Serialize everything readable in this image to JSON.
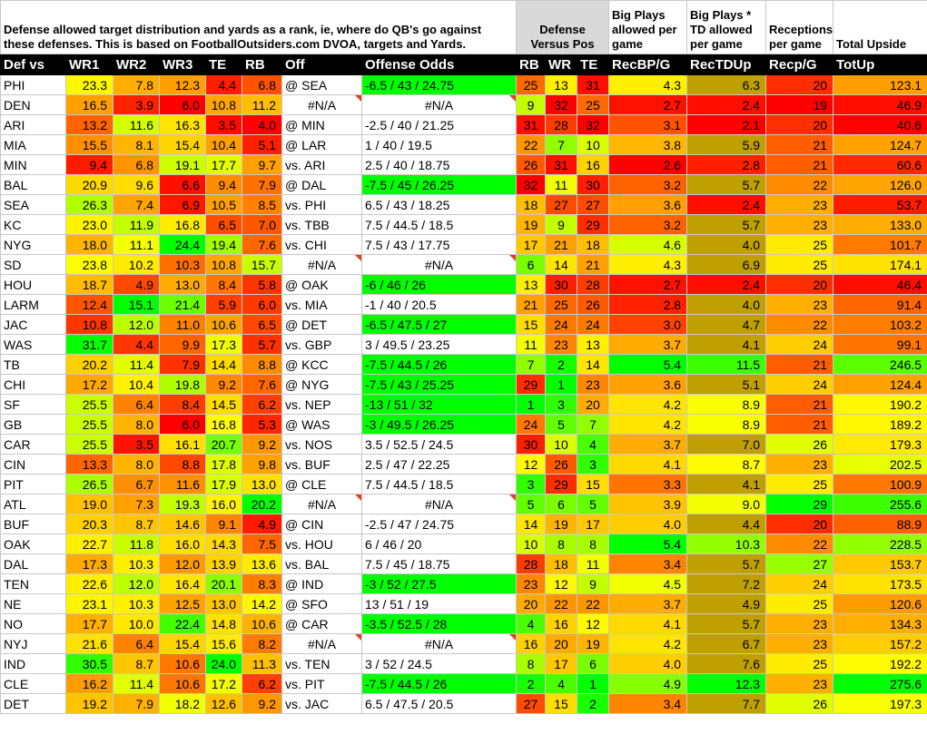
{
  "header": {
    "description": "Defense allowed target distribution and yards as a rank, ie, where do QB's go against these defenses. This is based on FootballOutsiders.com DVOA, targets and Yards.",
    "defense_vs_pos": "Defense Versus Pos",
    "big_plays": "Big Plays allowed per game",
    "big_plays_td": "Big Plays * TD allowed per game",
    "receptions": "Receptions per game",
    "total_upside": "Total Upside"
  },
  "columns": [
    "Def vs",
    "WR1",
    "WR2",
    "WR3",
    "TE",
    "RB",
    "Off",
    "Offense Odds",
    "RB",
    "WR",
    "TE",
    "RecBP/G",
    "RecTDUp",
    "Recp/G",
    "TotUp"
  ],
  "colors": {
    "green": "#00ff00",
    "yellow": "#ffff00",
    "orange": "#ff9900",
    "red": "#ff0000"
  },
  "rows": [
    {
      "team": "PHI",
      "wr1": "23.3",
      "wr2": "7.8",
      "wr3": "12.3",
      "te": "4.4",
      "rb": "6.8",
      "off": "@ SEA",
      "odds": "-6.5 / 43 / 24.75",
      "drb": "25",
      "dwr": "13",
      "dte": "31",
      "bp": "4.3",
      "td": "6.3",
      "rec": "20",
      "tot": "123.1"
    },
    {
      "team": "DEN",
      "wr1": "16.5",
      "wr2": "3.9",
      "wr3": "6.0",
      "te": "10.8",
      "rb": "11.2",
      "off": "#N/A",
      "odds": "#N/A",
      "drb": "9",
      "dwr": "32",
      "dte": "25",
      "bp": "2.7",
      "td": "2.4",
      "rec": "19",
      "tot": "46.9"
    },
    {
      "team": "ARI",
      "wr1": "13.2",
      "wr2": "11.6",
      "wr3": "16.3",
      "te": "3.5",
      "rb": "4.0",
      "off": "@ MIN",
      "odds": "-2.5 / 40 / 21.25",
      "drb": "31",
      "dwr": "28",
      "dte": "32",
      "bp": "3.1",
      "td": "2.1",
      "rec": "20",
      "tot": "40.6"
    },
    {
      "team": "MIA",
      "wr1": "15.5",
      "wr2": "8.1",
      "wr3": "15.4",
      "te": "10.4",
      "rb": "5.1",
      "off": "@ LAR",
      "odds": "1 / 40 / 19.5",
      "drb": "22",
      "dwr": "7",
      "dte": "10",
      "bp": "3.8",
      "td": "5.9",
      "rec": "21",
      "tot": "124.7"
    },
    {
      "team": "MIN",
      "wr1": "9.4",
      "wr2": "6.8",
      "wr3": "19.1",
      "te": "17.7",
      "rb": "9.7",
      "off": "vs. ARI",
      "odds": "2.5 / 40 / 18.75",
      "drb": "26",
      "dwr": "31",
      "dte": "16",
      "bp": "2.6",
      "td": "2.8",
      "rec": "21",
      "tot": "60.6"
    },
    {
      "team": "BAL",
      "wr1": "20.9",
      "wr2": "9.6",
      "wr3": "6.6",
      "te": "9.4",
      "rb": "7.9",
      "off": "@ DAL",
      "odds": "-7.5 / 45 / 26.25",
      "drb": "32",
      "dwr": "11",
      "dte": "30",
      "bp": "3.2",
      "td": "5.7",
      "rec": "22",
      "tot": "126.0"
    },
    {
      "team": "SEA",
      "wr1": "26.3",
      "wr2": "7.4",
      "wr3": "6.9",
      "te": "10.5",
      "rb": "8.5",
      "off": "vs. PHI",
      "odds": "6.5 / 43 / 18.25",
      "drb": "18",
      "dwr": "27",
      "dte": "27",
      "bp": "3.6",
      "td": "2.4",
      "rec": "23",
      "tot": "53.7"
    },
    {
      "team": "KC",
      "wr1": "23.0",
      "wr2": "11.9",
      "wr3": "16.8",
      "te": "6.5",
      "rb": "7.0",
      "off": "vs. TBB",
      "odds": "7.5 / 44.5 / 18.5",
      "drb": "19",
      "dwr": "9",
      "dte": "29",
      "bp": "3.2",
      "td": "5.7",
      "rec": "23",
      "tot": "133.0"
    },
    {
      "team": "NYG",
      "wr1": "18.0",
      "wr2": "11.1",
      "wr3": "24.4",
      "te": "19.4",
      "rb": "7.6",
      "off": "vs. CHI",
      "odds": "7.5 / 43 / 17.75",
      "drb": "17",
      "dwr": "21",
      "dte": "18",
      "bp": "4.6",
      "td": "4.0",
      "rec": "25",
      "tot": "101.7"
    },
    {
      "team": "SD",
      "wr1": "23.8",
      "wr2": "10.2",
      "wr3": "10.3",
      "te": "10.8",
      "rb": "15.7",
      "off": "#N/A",
      "odds": "#N/A",
      "drb": "6",
      "dwr": "14",
      "dte": "21",
      "bp": "4.3",
      "td": "6.9",
      "rec": "25",
      "tot": "174.1"
    },
    {
      "team": "HOU",
      "wr1": "18.7",
      "wr2": "4.9",
      "wr3": "13.0",
      "te": "8.4",
      "rb": "5.8",
      "off": "@ OAK",
      "odds": "-6 / 46 / 26",
      "drb": "13",
      "dwr": "30",
      "dte": "28",
      "bp": "2.7",
      "td": "2.4",
      "rec": "20",
      "tot": "46.4"
    },
    {
      "team": "LARM",
      "wr1": "12.4",
      "wr2": "15.1",
      "wr3": "21.4",
      "te": "5.9",
      "rb": "6.0",
      "off": "vs. MIA",
      "odds": "-1 / 40 / 20.5",
      "drb": "21",
      "dwr": "25",
      "dte": "26",
      "bp": "2.8",
      "td": "4.0",
      "rec": "23",
      "tot": "91.4"
    },
    {
      "team": "JAC",
      "wr1": "10.8",
      "wr2": "12.0",
      "wr3": "11.0",
      "te": "10.6",
      "rb": "6.5",
      "off": "@ DET",
      "odds": "-6.5 / 47.5 / 27",
      "drb": "15",
      "dwr": "24",
      "dte": "24",
      "bp": "3.0",
      "td": "4.7",
      "rec": "22",
      "tot": "103.2"
    },
    {
      "team": "WAS",
      "wr1": "31.7",
      "wr2": "4.4",
      "wr3": "9.9",
      "te": "17.3",
      "rb": "5.7",
      "off": "vs. GBP",
      "odds": "3 / 49.5 / 23.25",
      "drb": "11",
      "dwr": "23",
      "dte": "13",
      "bp": "3.7",
      "td": "4.1",
      "rec": "24",
      "tot": "99.1"
    },
    {
      "team": "TB",
      "wr1": "20.2",
      "wr2": "11.4",
      "wr3": "7.9",
      "te": "14.4",
      "rb": "8.8",
      "off": "@ KCC",
      "odds": "-7.5 / 44.5 / 26",
      "drb": "7",
      "dwr": "2",
      "dte": "14",
      "bp": "5.4",
      "td": "11.5",
      "rec": "21",
      "tot": "246.5"
    },
    {
      "team": "CHI",
      "wr1": "17.2",
      "wr2": "10.4",
      "wr3": "19.8",
      "te": "9.2",
      "rb": "7.6",
      "off": "@ NYG",
      "odds": "-7.5 / 43 / 25.25",
      "drb": "29",
      "dwr": "1",
      "dte": "23",
      "bp": "3.6",
      "td": "5.1",
      "rec": "24",
      "tot": "124.4"
    },
    {
      "team": "SF",
      "wr1": "25.5",
      "wr2": "6.4",
      "wr3": "8.4",
      "te": "14.5",
      "rb": "6.2",
      "off": "vs. NEP",
      "odds": "-13 / 51 / 32",
      "drb": "1",
      "dwr": "3",
      "dte": "20",
      "bp": "4.2",
      "td": "8.9",
      "rec": "21",
      "tot": "190.2"
    },
    {
      "team": "GB",
      "wr1": "25.5",
      "wr2": "8.0",
      "wr3": "6.0",
      "te": "16.8",
      "rb": "5.3",
      "off": "@ WAS",
      "odds": "-3 / 49.5 / 26.25",
      "drb": "24",
      "dwr": "5",
      "dte": "7",
      "bp": "4.2",
      "td": "8.9",
      "rec": "21",
      "tot": "189.2"
    },
    {
      "team": "CAR",
      "wr1": "25.5",
      "wr2": "3.5",
      "wr3": "16.1",
      "te": "20.7",
      "rb": "9.2",
      "off": "vs. NOS",
      "odds": "3.5 / 52.5 / 24.5",
      "drb": "30",
      "dwr": "10",
      "dte": "4",
      "bp": "3.7",
      "td": "7.0",
      "rec": "26",
      "tot": "179.3"
    },
    {
      "team": "CIN",
      "wr1": "13.3",
      "wr2": "8.0",
      "wr3": "8.8",
      "te": "17.8",
      "rb": "9.8",
      "off": "vs. BUF",
      "odds": "2.5 / 47 / 22.25",
      "drb": "12",
      "dwr": "26",
      "dte": "3",
      "bp": "4.1",
      "td": "8.7",
      "rec": "23",
      "tot": "202.5"
    },
    {
      "team": "PIT",
      "wr1": "26.5",
      "wr2": "6.7",
      "wr3": "11.6",
      "te": "17.9",
      "rb": "13.0",
      "off": "@ CLE",
      "odds": "7.5 / 44.5 / 18.5",
      "drb": "3",
      "dwr": "29",
      "dte": "15",
      "bp": "3.3",
      "td": "4.1",
      "rec": "25",
      "tot": "100.9"
    },
    {
      "team": "ATL",
      "wr1": "19.0",
      "wr2": "7.3",
      "wr3": "19.3",
      "te": "16.0",
      "rb": "20.2",
      "off": "#N/A",
      "odds": "#N/A",
      "drb": "5",
      "dwr": "6",
      "dte": "5",
      "bp": "3.9",
      "td": "9.0",
      "rec": "29",
      "tot": "255.6"
    },
    {
      "team": "BUF",
      "wr1": "20.3",
      "wr2": "8.7",
      "wr3": "14.6",
      "te": "9.1",
      "rb": "4.9",
      "off": "@ CIN",
      "odds": "-2.5 / 47 / 24.75",
      "drb": "14",
      "dwr": "19",
      "dte": "17",
      "bp": "4.0",
      "td": "4.4",
      "rec": "20",
      "tot": "88.9"
    },
    {
      "team": "OAK",
      "wr1": "22.7",
      "wr2": "11.8",
      "wr3": "16.0",
      "te": "14.3",
      "rb": "7.5",
      "off": "vs. HOU",
      "odds": "6 / 46 / 20",
      "drb": "10",
      "dwr": "8",
      "dte": "8",
      "bp": "5.4",
      "td": "10.3",
      "rec": "22",
      "tot": "228.5"
    },
    {
      "team": "DAL",
      "wr1": "17.3",
      "wr2": "10.3",
      "wr3": "12.0",
      "te": "13.9",
      "rb": "13.6",
      "off": "vs. BAL",
      "odds": "7.5 / 45 / 18.75",
      "drb": "28",
      "dwr": "18",
      "dte": "11",
      "bp": "3.4",
      "td": "5.7",
      "rec": "27",
      "tot": "153.7"
    },
    {
      "team": "TEN",
      "wr1": "22.6",
      "wr2": "12.0",
      "wr3": "16.4",
      "te": "20.1",
      "rb": "8.3",
      "off": "@ IND",
      "odds": "-3 / 52 / 27.5",
      "drb": "23",
      "dwr": "12",
      "dte": "9",
      "bp": "4.5",
      "td": "7.2",
      "rec": "24",
      "tot": "173.5"
    },
    {
      "team": "NE",
      "wr1": "23.1",
      "wr2": "10.3",
      "wr3": "12.5",
      "te": "13.0",
      "rb": "14.2",
      "off": "@ SFO",
      "odds": "13 / 51 / 19",
      "drb": "20",
      "dwr": "22",
      "dte": "22",
      "bp": "3.7",
      "td": "4.9",
      "rec": "25",
      "tot": "120.6"
    },
    {
      "team": "NO",
      "wr1": "17.7",
      "wr2": "10.0",
      "wr3": "22.4",
      "te": "14.8",
      "rb": "10.6",
      "off": "@ CAR",
      "odds": "-3.5 / 52.5 / 28",
      "drb": "4",
      "dwr": "16",
      "dte": "12",
      "bp": "4.1",
      "td": "5.7",
      "rec": "23",
      "tot": "134.3"
    },
    {
      "team": "NYJ",
      "wr1": "21.6",
      "wr2": "6.4",
      "wr3": "15.4",
      "te": "15.6",
      "rb": "8.2",
      "off": "#N/A",
      "odds": "#N/A",
      "drb": "16",
      "dwr": "20",
      "dte": "19",
      "bp": "4.2",
      "td": "6.7",
      "rec": "23",
      "tot": "157.2"
    },
    {
      "team": "IND",
      "wr1": "30.5",
      "wr2": "8.7",
      "wr3": "10.6",
      "te": "24.0",
      "rb": "11.3",
      "off": "vs. TEN",
      "odds": "3 / 52 / 24.5",
      "drb": "8",
      "dwr": "17",
      "dte": "6",
      "bp": "4.0",
      "td": "7.6",
      "rec": "25",
      "tot": "192.2"
    },
    {
      "team": "CLE",
      "wr1": "16.2",
      "wr2": "11.4",
      "wr3": "10.6",
      "te": "17.2",
      "rb": "6.2",
      "off": "vs. PIT",
      "odds": "-7.5 / 44.5 / 26",
      "drb": "2",
      "dwr": "4",
      "dte": "1",
      "bp": "4.9",
      "td": "12.3",
      "rec": "23",
      "tot": "275.6"
    },
    {
      "team": "DET",
      "wr1": "19.2",
      "wr2": "7.9",
      "wr3": "18.2",
      "te": "12.6",
      "rb": "9.2",
      "off": "vs. JAC",
      "odds": "6.5 / 47.5 / 20.5",
      "drb": "27",
      "dwr": "15",
      "dte": "2",
      "bp": "3.4",
      "td": "7.7",
      "rec": "26",
      "tot": "197.3"
    }
  ]
}
